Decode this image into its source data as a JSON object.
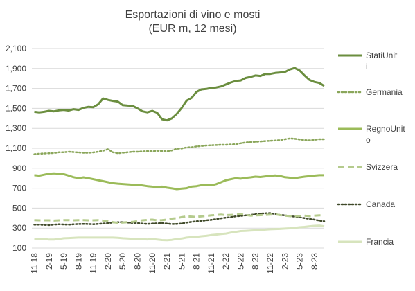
{
  "chart_data": {
    "type": "line",
    "title": [
      "Esportazioni di vino e mosti",
      "(EUR m,  12 mesi)"
    ],
    "xlabel": "",
    "ylabel": "",
    "ylim": [
      100,
      2100
    ],
    "y_ticks": [
      100,
      300,
      500,
      700,
      900,
      1100,
      1300,
      1500,
      1700,
      1900,
      2100
    ],
    "y_tick_labels": [
      "100",
      "300",
      "500",
      "700",
      "900",
      "1,100",
      "1,300",
      "1,500",
      "1,700",
      "1,900",
      "2,100"
    ],
    "x_tick_labels": [
      "11-18",
      "2-19",
      "5-19",
      "8-19",
      "11-19",
      "2-20",
      "5-20",
      "8-20",
      "11-20",
      "2-21",
      "5-21",
      "8-21",
      "11-21",
      "2-22",
      "5-22",
      "8-22",
      "11-22",
      "2-23",
      "5-23",
      "8-23"
    ],
    "months_per_tick": 3,
    "grid": true,
    "legend_position": "right",
    "series": [
      {
        "name": "StatiUniti",
        "color": "#6b8e3f",
        "style": "solid",
        "values": [
          1465,
          1460,
          1465,
          1475,
          1470,
          1480,
          1485,
          1478,
          1492,
          1485,
          1505,
          1515,
          1512,
          1540,
          1600,
          1585,
          1575,
          1568,
          1532,
          1528,
          1525,
          1500,
          1470,
          1460,
          1475,
          1455,
          1390,
          1380,
          1400,
          1445,
          1505,
          1578,
          1605,
          1665,
          1690,
          1695,
          1705,
          1710,
          1720,
          1740,
          1760,
          1775,
          1780,
          1805,
          1815,
          1830,
          1825,
          1845,
          1845,
          1855,
          1860,
          1865,
          1890,
          1905,
          1880,
          1830,
          1785,
          1765,
          1755,
          1725
        ]
      },
      {
        "name": "Germania",
        "color": "#8aa65a",
        "style": "dotted",
        "values": [
          1040,
          1045,
          1048,
          1050,
          1052,
          1060,
          1060,
          1065,
          1062,
          1058,
          1055,
          1055,
          1058,
          1065,
          1075,
          1090,
          1060,
          1050,
          1055,
          1060,
          1065,
          1065,
          1068,
          1072,
          1070,
          1075,
          1072,
          1070,
          1078,
          1095,
          1098,
          1108,
          1110,
          1118,
          1122,
          1128,
          1130,
          1132,
          1135,
          1135,
          1138,
          1140,
          1150,
          1158,
          1162,
          1165,
          1168,
          1172,
          1175,
          1178,
          1182,
          1190,
          1198,
          1195,
          1188,
          1182,
          1180,
          1185,
          1190,
          1190
        ]
      },
      {
        "name": "RegnoUnito",
        "color": "#9bbb59",
        "style": "solid",
        "values": [
          830,
          825,
          835,
          845,
          848,
          845,
          840,
          825,
          810,
          800,
          808,
          800,
          790,
          780,
          770,
          760,
          750,
          745,
          742,
          738,
          735,
          733,
          728,
          720,
          715,
          712,
          715,
          705,
          698,
          690,
          695,
          700,
          715,
          720,
          730,
          735,
          728,
          740,
          760,
          780,
          790,
          800,
          795,
          803,
          808,
          815,
          812,
          818,
          823,
          828,
          822,
          810,
          805,
          800,
          808,
          815,
          820,
          826,
          830,
          830
        ]
      },
      {
        "name": "Svizzera",
        "color": "#b5cb8d",
        "style": "dashed",
        "values": [
          380,
          378,
          378,
          378,
          375,
          378,
          380,
          380,
          378,
          380,
          380,
          378,
          378,
          380,
          375,
          372,
          360,
          352,
          355,
          360,
          362,
          370,
          378,
          382,
          385,
          378,
          380,
          385,
          395,
          400,
          410,
          418,
          415,
          412,
          418,
          422,
          428,
          432,
          435,
          430,
          432,
          435,
          438,
          432,
          425,
          428,
          430,
          432,
          435,
          438,
          430,
          425,
          420,
          418,
          422,
          425,
          420,
          425,
          428,
          428
        ]
      },
      {
        "name": "Canada",
        "color": "#404a2a",
        "style": "dotted",
        "values": [
          335,
          335,
          332,
          330,
          335,
          338,
          336,
          334,
          338,
          340,
          342,
          340,
          338,
          342,
          345,
          350,
          355,
          358,
          360,
          355,
          352,
          350,
          345,
          342,
          345,
          348,
          350,
          345,
          340,
          342,
          345,
          355,
          362,
          368,
          372,
          378,
          382,
          390,
          398,
          405,
          410,
          418,
          422,
          428,
          432,
          438,
          445,
          448,
          450,
          440,
          432,
          428,
          420,
          415,
          408,
          400,
          392,
          385,
          375,
          368
        ]
      },
      {
        "name": "Francia",
        "color": "#d7e4bd",
        "style": "solid",
        "values": [
          192,
          190,
          192,
          185,
          185,
          190,
          198,
          200,
          202,
          205,
          205,
          205,
          205,
          205,
          205,
          205,
          205,
          202,
          198,
          195,
          192,
          190,
          188,
          186,
          190,
          185,
          180,
          178,
          182,
          190,
          195,
          205,
          210,
          212,
          218,
          222,
          230,
          235,
          240,
          245,
          255,
          262,
          270,
          272,
          275,
          278,
          280,
          285,
          288,
          290,
          292,
          295,
          298,
          302,
          308,
          312,
          318,
          322,
          325,
          318
        ]
      }
    ]
  }
}
